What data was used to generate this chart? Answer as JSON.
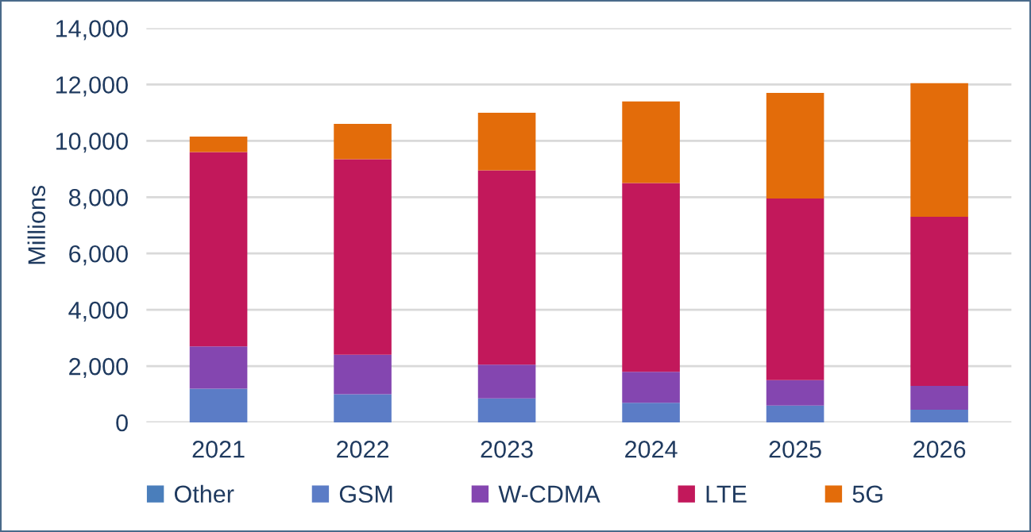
{
  "chart_data": {
    "type": "bar",
    "stacked": true,
    "ylabel": "Millions",
    "categories": [
      "2021",
      "2022",
      "2023",
      "2024",
      "2025",
      "2026"
    ],
    "series": [
      {
        "name": "Other",
        "color": "#4a7ebb",
        "values": [
          null,
          null,
          null,
          null,
          null,
          null
        ]
      },
      {
        "name": "GSM",
        "color": "#5b7cc6",
        "values": [
          1200,
          1000,
          850,
          700,
          600,
          450
        ]
      },
      {
        "name": "W-CDMA",
        "color": "#8446b0",
        "values": [
          1500,
          1400,
          1200,
          1100,
          900,
          850
        ]
      },
      {
        "name": "LTE",
        "color": "#c2185b",
        "values": [
          6900,
          6950,
          6900,
          6700,
          6450,
          6000
        ]
      },
      {
        "name": "5G",
        "color": "#e36c0a",
        "values": [
          550,
          1250,
          2050,
          2900,
          3750,
          4750
        ]
      }
    ],
    "ylim": [
      0,
      14000
    ],
    "yticks": [
      {
        "value": 0,
        "label": "0"
      },
      {
        "value": 2000,
        "label": "2,000"
      },
      {
        "value": 4000,
        "label": "4,000"
      },
      {
        "value": 6000,
        "label": "6,000"
      },
      {
        "value": 8000,
        "label": "8,000"
      },
      {
        "value": 10000,
        "label": "10,000"
      },
      {
        "value": 12000,
        "label": "12,000"
      },
      {
        "value": 14000,
        "label": "14,000"
      }
    ],
    "grid": "y",
    "legend": "bottom"
  }
}
